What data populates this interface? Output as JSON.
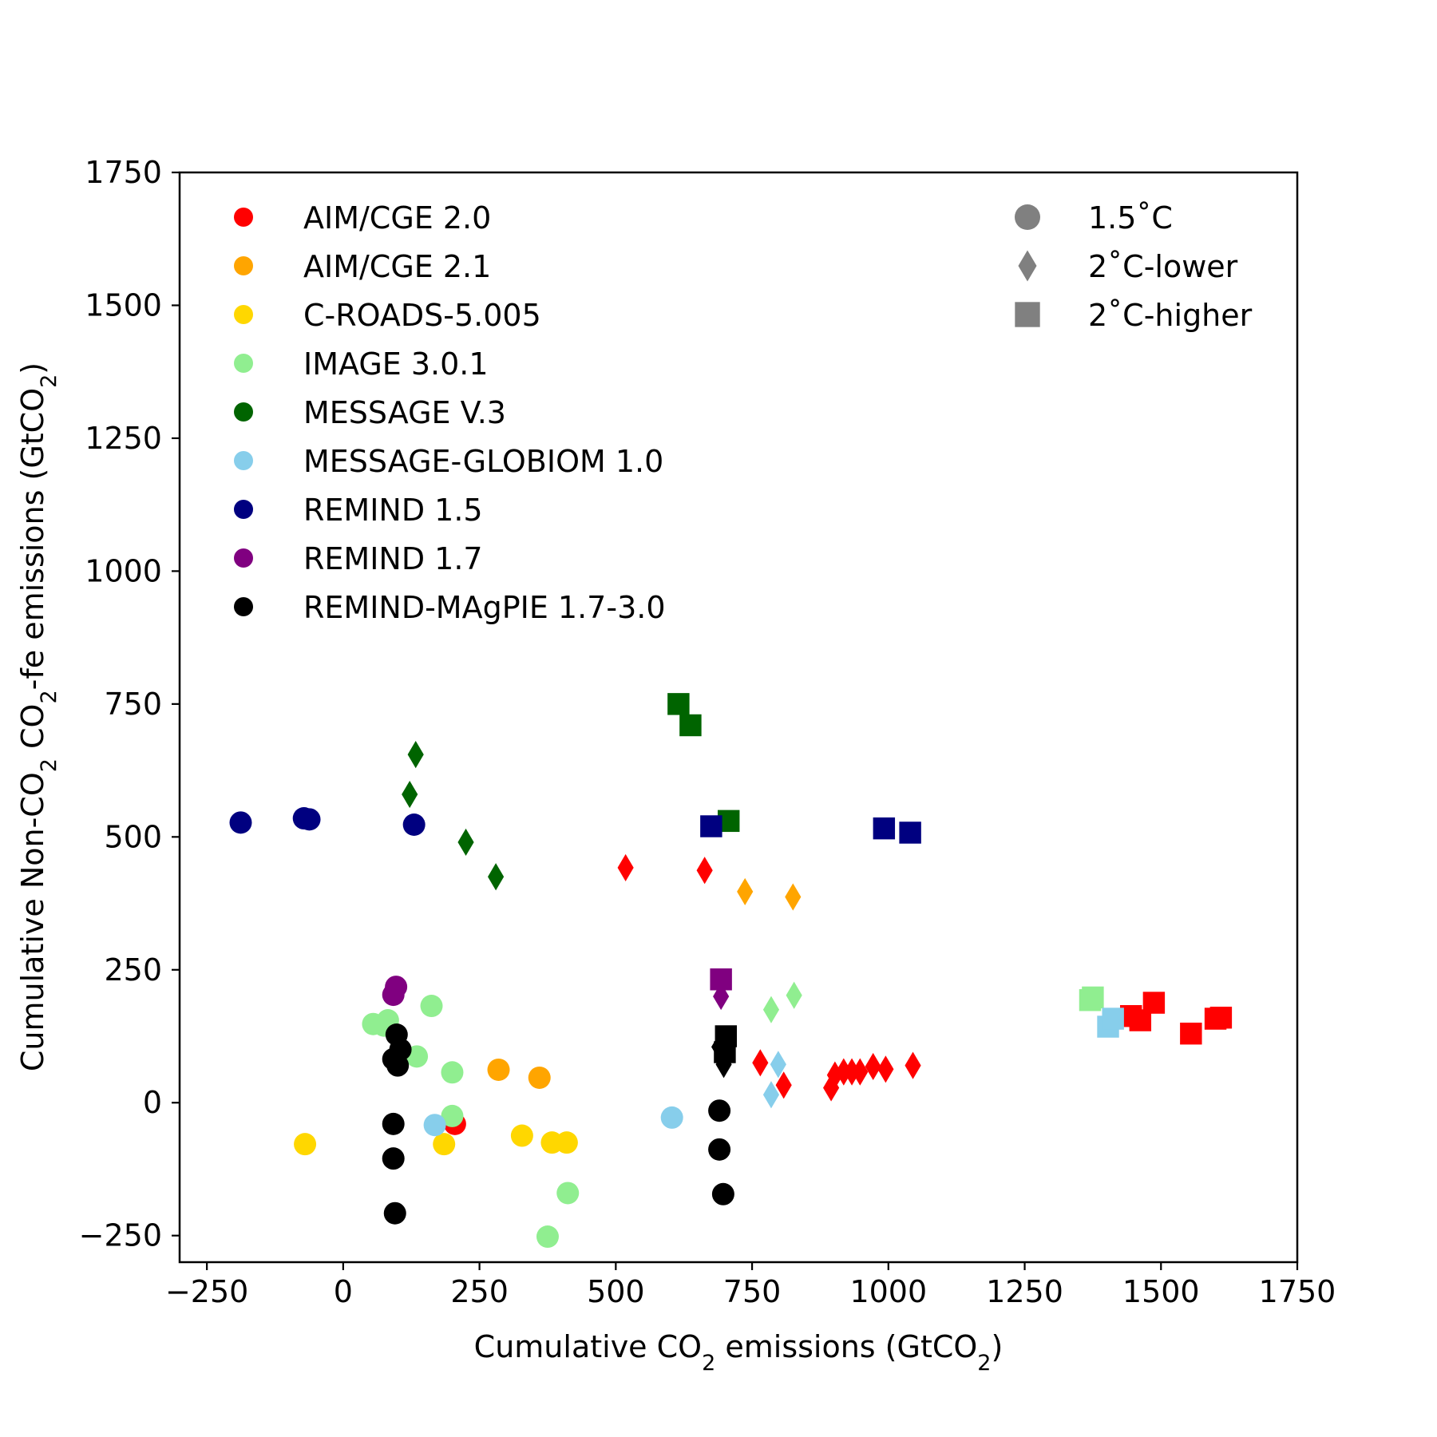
{
  "chart_data": {
    "type": "scatter",
    "title": "",
    "xlabel": {
      "pre": "Cumulative CO",
      "sub": "2",
      "post": " emissions (GtCO",
      "sub2": "2",
      "end": ")"
    },
    "ylabel": {
      "pre": "Cumulative Non-CO",
      "sub": "2",
      "mid": " CO",
      "sub2": "2",
      "post": "-fe emissions (GtCO",
      "sub3": "2",
      "end": ")"
    },
    "xlim": [
      -300,
      1750
    ],
    "ylim": [
      -300,
      1750
    ],
    "xticks": [
      -250,
      0,
      250,
      500,
      750,
      1000,
      1250,
      1500,
      1750
    ],
    "yticks": [
      -250,
      0,
      250,
      500,
      750,
      1000,
      1250,
      1500,
      1750
    ],
    "xtick_labels": [
      "−250",
      "0",
      "250",
      "500",
      "750",
      "1000",
      "1250",
      "1500",
      "1750"
    ],
    "ytick_labels": [
      "−250",
      "0",
      "250",
      "500",
      "750",
      "1000",
      "1250",
      "1500",
      "1750"
    ],
    "grid": false,
    "legend_models_position": "top-left",
    "legend_categories_position": "top-right",
    "categories": [
      {
        "name": "1.5˚C",
        "marker": "circle"
      },
      {
        "name": "2˚C-lower",
        "marker": "diamond"
      },
      {
        "name": "2˚C-higher",
        "marker": "square"
      }
    ],
    "category_legend_color": "#808080",
    "series": [
      {
        "name": "AIM/CGE 2.0",
        "color": "#ff0000",
        "points": [
          {
            "x": 205,
            "y": -40,
            "category": "1.5˚C"
          },
          {
            "x": 518,
            "y": 442,
            "category": "2˚C-lower"
          },
          {
            "x": 663,
            "y": 437,
            "category": "2˚C-lower"
          },
          {
            "x": 765,
            "y": 75,
            "category": "2˚C-lower"
          },
          {
            "x": 808,
            "y": 33,
            "category": "2˚C-lower"
          },
          {
            "x": 895,
            "y": 28,
            "category": "2˚C-lower"
          },
          {
            "x": 902,
            "y": 52,
            "category": "2˚C-lower"
          },
          {
            "x": 918,
            "y": 58,
            "category": "2˚C-lower"
          },
          {
            "x": 933,
            "y": 58,
            "category": "2˚C-lower"
          },
          {
            "x": 948,
            "y": 58,
            "category": "2˚C-lower"
          },
          {
            "x": 972,
            "y": 68,
            "category": "2˚C-lower"
          },
          {
            "x": 995,
            "y": 63,
            "category": "2˚C-lower"
          },
          {
            "x": 1045,
            "y": 70,
            "category": "2˚C-lower"
          },
          {
            "x": 1445,
            "y": 163,
            "category": "2˚C-higher"
          },
          {
            "x": 1462,
            "y": 155,
            "category": "2˚C-higher"
          },
          {
            "x": 1487,
            "y": 188,
            "category": "2˚C-higher"
          },
          {
            "x": 1555,
            "y": 130,
            "category": "2˚C-higher"
          },
          {
            "x": 1600,
            "y": 158,
            "category": "2˚C-higher"
          },
          {
            "x": 1610,
            "y": 160,
            "category": "2˚C-higher"
          }
        ]
      },
      {
        "name": "AIM/CGE 2.1",
        "color": "#ffa500",
        "points": [
          {
            "x": 285,
            "y": 62,
            "category": "1.5˚C"
          },
          {
            "x": 360,
            "y": 47,
            "category": "1.5˚C"
          },
          {
            "x": 737,
            "y": 397,
            "category": "2˚C-lower"
          },
          {
            "x": 825,
            "y": 387,
            "category": "2˚C-lower"
          }
        ]
      },
      {
        "name": "C-ROADS-5.005",
        "color": "#ffd700",
        "points": [
          {
            "x": -70,
            "y": -78,
            "category": "1.5˚C"
          },
          {
            "x": 185,
            "y": -78,
            "category": "1.5˚C"
          },
          {
            "x": 328,
            "y": -62,
            "category": "1.5˚C"
          },
          {
            "x": 383,
            "y": -75,
            "category": "1.5˚C"
          },
          {
            "x": 410,
            "y": -75,
            "category": "1.5˚C"
          }
        ]
      },
      {
        "name": "IMAGE 3.0.1",
        "color": "#90ee90",
        "points": [
          {
            "x": 55,
            "y": 148,
            "category": "1.5˚C"
          },
          {
            "x": 75,
            "y": 145,
            "category": "1.5˚C"
          },
          {
            "x": 82,
            "y": 155,
            "category": "1.5˚C"
          },
          {
            "x": 135,
            "y": 87,
            "category": "1.5˚C"
          },
          {
            "x": 162,
            "y": 182,
            "category": "1.5˚C"
          },
          {
            "x": 200,
            "y": 57,
            "category": "1.5˚C"
          },
          {
            "x": 200,
            "y": -25,
            "category": "1.5˚C"
          },
          {
            "x": 412,
            "y": -170,
            "category": "1.5˚C"
          },
          {
            "x": 375,
            "y": -252,
            "category": "1.5˚C"
          },
          {
            "x": 785,
            "y": 175,
            "category": "2˚C-lower"
          },
          {
            "x": 827,
            "y": 202,
            "category": "2˚C-lower"
          },
          {
            "x": 1370,
            "y": 193,
            "category": "2˚C-higher"
          },
          {
            "x": 1375,
            "y": 198,
            "category": "2˚C-higher"
          }
        ]
      },
      {
        "name": "MESSAGE V.3",
        "color": "#006400",
        "points": [
          {
            "x": 122,
            "y": 580,
            "category": "2˚C-lower"
          },
          {
            "x": 133,
            "y": 655,
            "category": "2˚C-lower"
          },
          {
            "x": 225,
            "y": 490,
            "category": "2˚C-lower"
          },
          {
            "x": 280,
            "y": 425,
            "category": "2˚C-lower"
          },
          {
            "x": 615,
            "y": 750,
            "category": "2˚C-higher"
          },
          {
            "x": 637,
            "y": 710,
            "category": "2˚C-higher"
          },
          {
            "x": 707,
            "y": 530,
            "category": "2˚C-higher"
          }
        ]
      },
      {
        "name": "MESSAGE-GLOBIOM 1.0",
        "color": "#87ceeb",
        "points": [
          {
            "x": 168,
            "y": -42,
            "category": "1.5˚C"
          },
          {
            "x": 603,
            "y": -28,
            "category": "1.5˚C"
          },
          {
            "x": 798,
            "y": 72,
            "category": "2˚C-lower"
          },
          {
            "x": 785,
            "y": 15,
            "category": "2˚C-lower"
          },
          {
            "x": 1403,
            "y": 143,
            "category": "2˚C-higher"
          },
          {
            "x": 1412,
            "y": 158,
            "category": "2˚C-higher"
          }
        ]
      },
      {
        "name": "REMIND 1.5",
        "color": "#000080",
        "points": [
          {
            "x": -188,
            "y": 527,
            "category": "1.5˚C"
          },
          {
            "x": -72,
            "y": 535,
            "category": "1.5˚C"
          },
          {
            "x": -62,
            "y": 533,
            "category": "1.5˚C"
          },
          {
            "x": 130,
            "y": 523,
            "category": "1.5˚C"
          },
          {
            "x": 675,
            "y": 520,
            "category": "2˚C-higher"
          },
          {
            "x": 992,
            "y": 516,
            "category": "2˚C-higher"
          },
          {
            "x": 1040,
            "y": 508,
            "category": "2˚C-higher"
          }
        ]
      },
      {
        "name": "REMIND 1.7",
        "color": "#800080",
        "points": [
          {
            "x": 92,
            "y": 203,
            "category": "1.5˚C"
          },
          {
            "x": 97,
            "y": 218,
            "category": "1.5˚C"
          },
          {
            "x": 693,
            "y": 200,
            "category": "2˚C-lower"
          },
          {
            "x": 693,
            "y": 232,
            "category": "2˚C-higher"
          }
        ]
      },
      {
        "name": "REMIND-MAgPIE 1.7-3.0",
        "color": "#000000",
        "points": [
          {
            "x": 98,
            "y": 128,
            "category": "1.5˚C"
          },
          {
            "x": 105,
            "y": 100,
            "category": "1.5˚C"
          },
          {
            "x": 92,
            "y": 82,
            "category": "1.5˚C"
          },
          {
            "x": 100,
            "y": 70,
            "category": "1.5˚C"
          },
          {
            "x": 92,
            "y": -40,
            "category": "1.5˚C"
          },
          {
            "x": 92,
            "y": -105,
            "category": "1.5˚C"
          },
          {
            "x": 95,
            "y": -208,
            "category": "1.5˚C"
          },
          {
            "x": 690,
            "y": -15,
            "category": "1.5˚C"
          },
          {
            "x": 690,
            "y": -88,
            "category": "1.5˚C"
          },
          {
            "x": 697,
            "y": -172,
            "category": "1.5˚C"
          },
          {
            "x": 690,
            "y": 105,
            "category": "2˚C-lower"
          },
          {
            "x": 698,
            "y": 72,
            "category": "2˚C-lower"
          },
          {
            "x": 700,
            "y": 95,
            "category": "2˚C-higher"
          },
          {
            "x": 702,
            "y": 125,
            "category": "2˚C-higher"
          }
        ]
      }
    ]
  }
}
